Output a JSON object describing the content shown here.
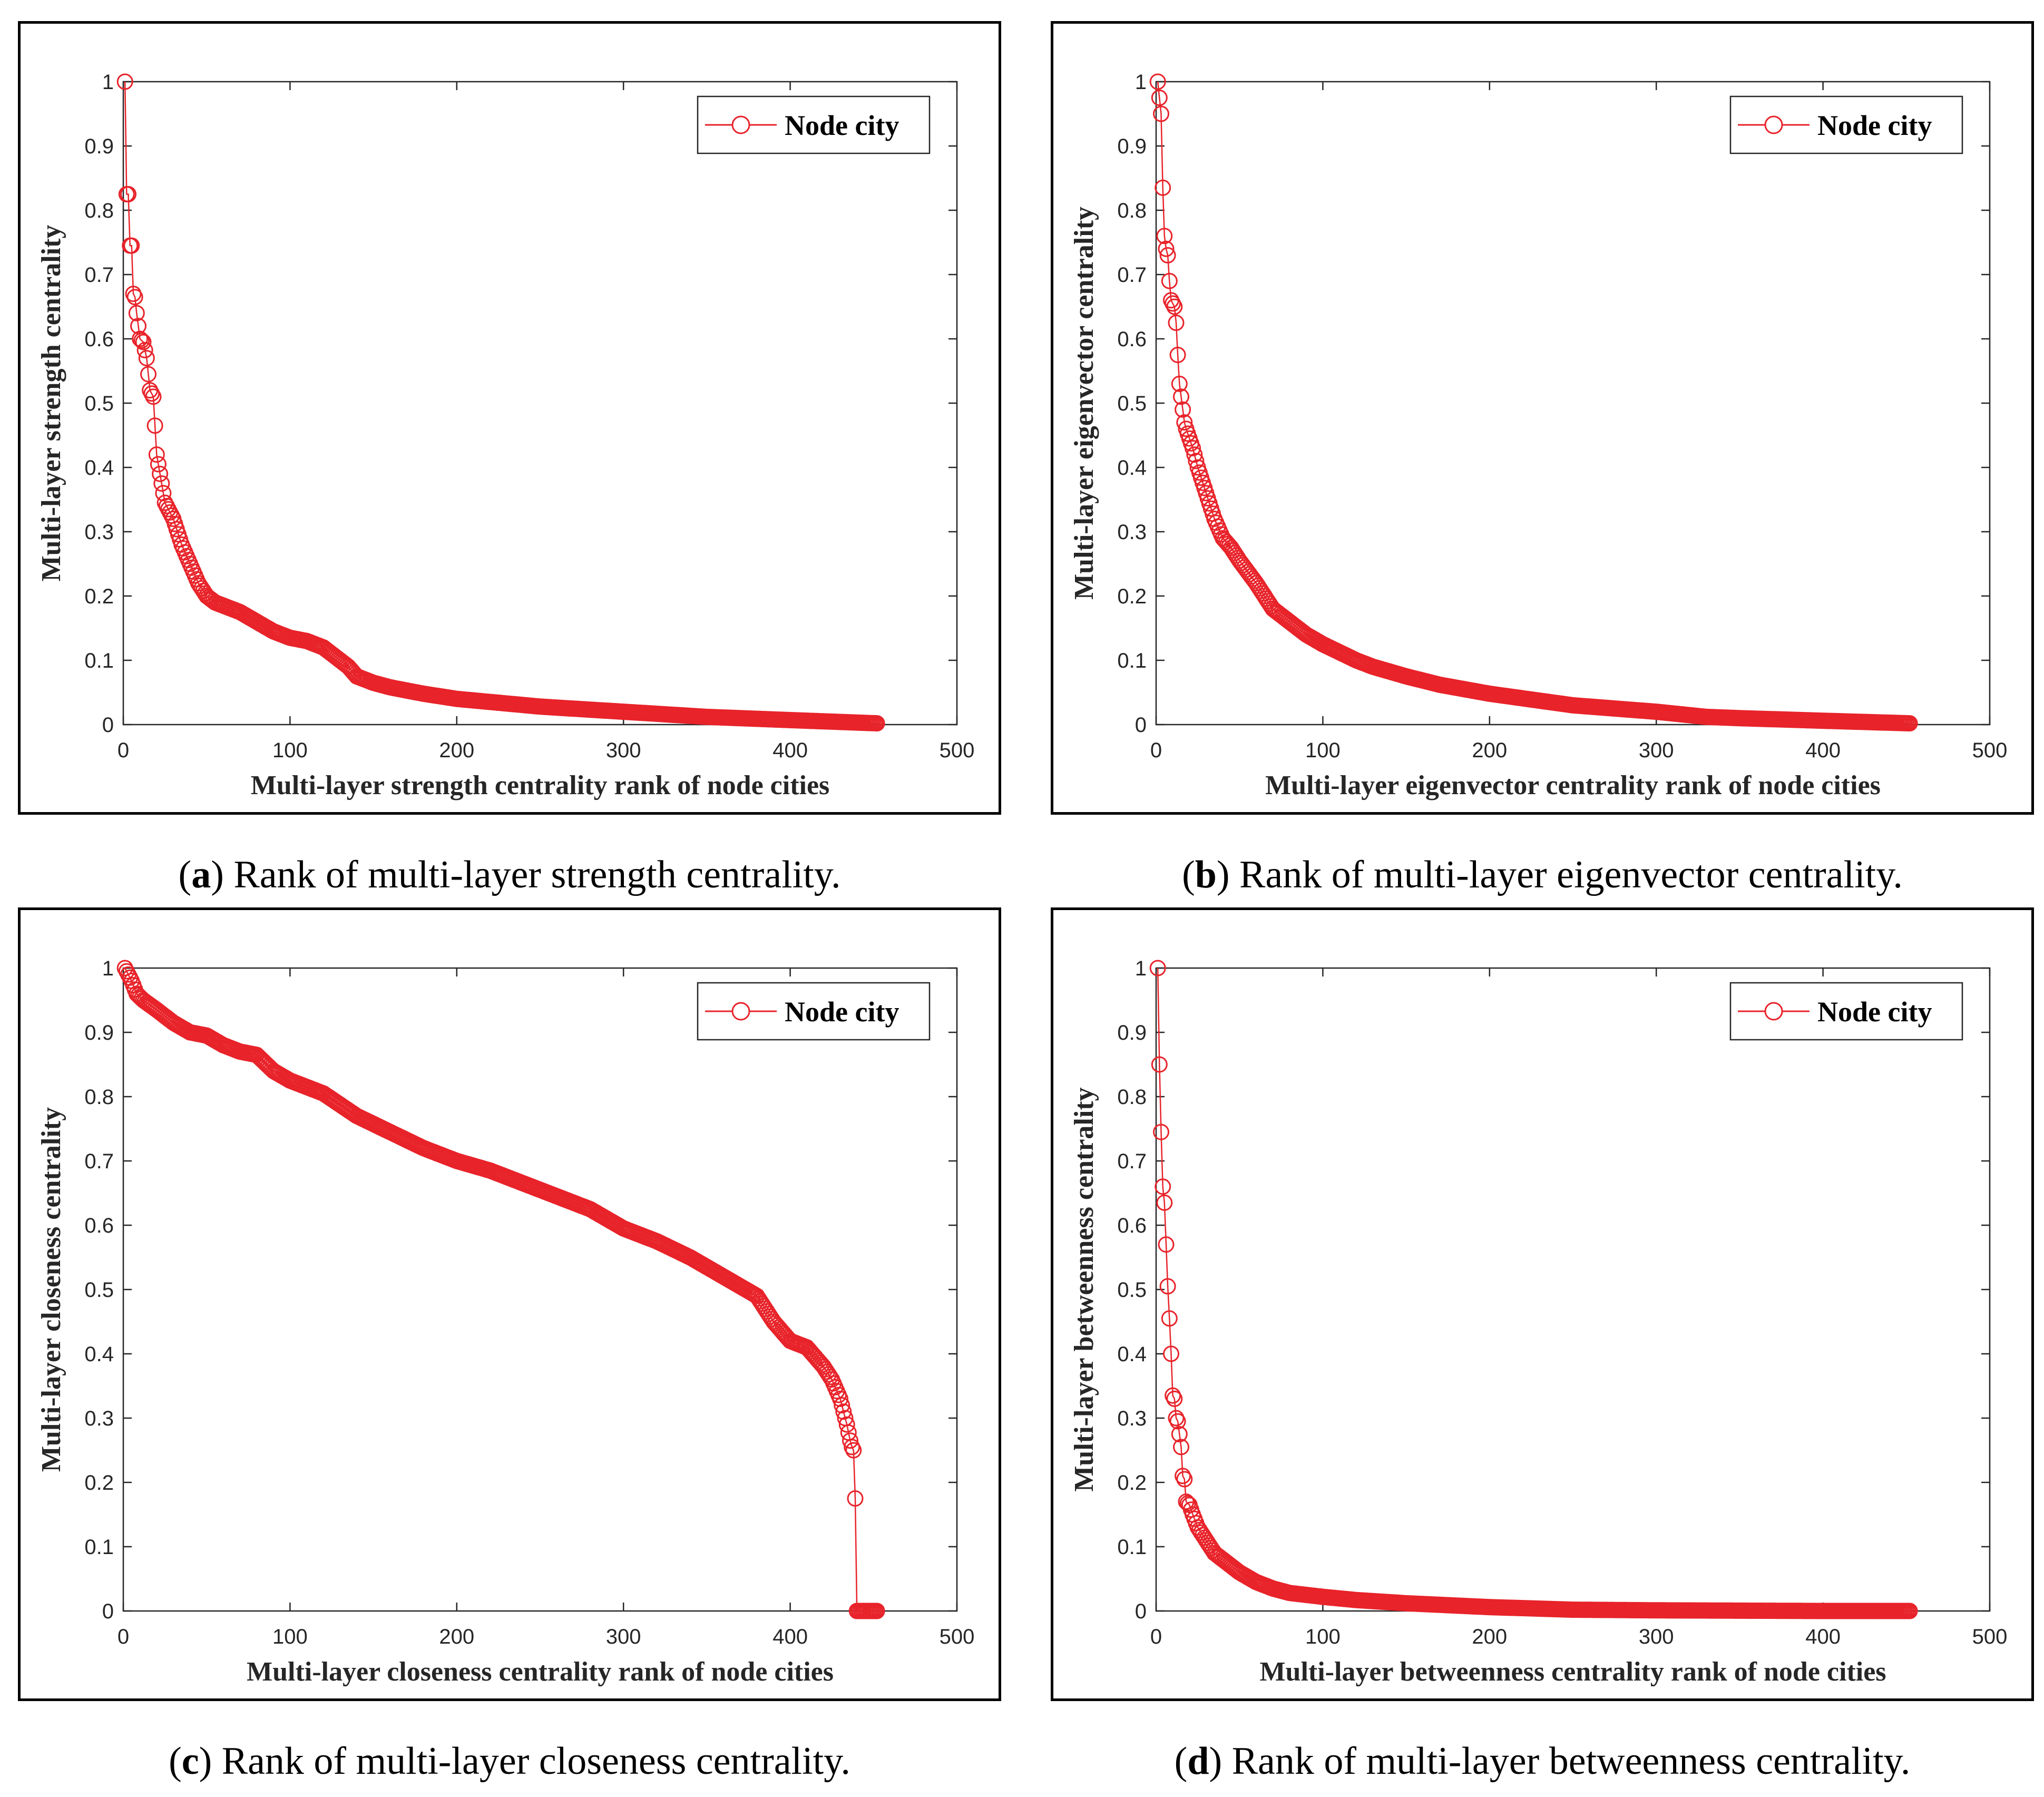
{
  "colors": {
    "series": "#e8232a",
    "axis": "#262626",
    "frame": "#000000"
  },
  "chart_data": [
    {
      "id": "a",
      "type": "line",
      "caption_letter": "a",
      "caption_text": ") Rank of multi-layer strength centrality.",
      "caption_open": "(",
      "xlabel": "Multi-layer strength centrality rank of node cities",
      "ylabel": "Multi-layer strength centrality",
      "xlim": [
        0,
        500
      ],
      "ylim": [
        0,
        1
      ],
      "xticks": [
        "0",
        "100",
        "200",
        "300",
        "400",
        "500"
      ],
      "yticks": [
        "0",
        "0.1",
        "0.2",
        "0.3",
        "0.4",
        "0.5",
        "0.6",
        "0.7",
        "0.8",
        "0.9",
        "1"
      ],
      "legend": "Node city",
      "legend_position": "top-right",
      "n_points": 452,
      "series": [
        {
          "name": "Node city",
          "x": [
            1,
            2,
            3,
            4,
            5,
            6,
            7,
            8,
            9,
            10,
            12,
            14,
            16,
            18,
            20,
            22,
            25,
            30,
            35,
            40,
            45,
            50,
            55,
            60,
            70,
            80,
            90,
            100,
            110,
            120,
            130,
            135,
            140,
            150,
            160,
            180,
            200,
            250,
            300,
            350,
            400,
            452
          ],
          "y": [
            1.0,
            0.825,
            0.825,
            0.745,
            0.745,
            0.67,
            0.665,
            0.64,
            0.62,
            0.6,
            0.595,
            0.57,
            0.52,
            0.51,
            0.42,
            0.39,
            0.345,
            0.32,
            0.28,
            0.25,
            0.22,
            0.2,
            0.19,
            0.185,
            0.175,
            0.16,
            0.145,
            0.135,
            0.13,
            0.12,
            0.1,
            0.09,
            0.075,
            0.065,
            0.058,
            0.048,
            0.04,
            0.028,
            0.02,
            0.012,
            0.007,
            0.002
          ]
        }
      ]
    },
    {
      "id": "b",
      "type": "line",
      "caption_letter": "b",
      "caption_text": ") Rank of multi-layer eigenvector centrality.",
      "caption_open": "(",
      "xlabel": "Multi-layer eigenvector centrality rank of node cities",
      "ylabel": "Multi-layer eigenvector centrality",
      "xlim": [
        0,
        500
      ],
      "ylim": [
        0,
        1
      ],
      "xticks": [
        "0",
        "100",
        "200",
        "300",
        "400",
        "500"
      ],
      "yticks": [
        "0",
        "0.1",
        "0.2",
        "0.3",
        "0.4",
        "0.5",
        "0.6",
        "0.7",
        "0.8",
        "0.9",
        "1"
      ],
      "legend": "Node city",
      "legend_position": "top-right",
      "n_points": 452,
      "series": [
        {
          "name": "Node city",
          "x": [
            1,
            2,
            3,
            4,
            5,
            6,
            7,
            8,
            9,
            10,
            11,
            12,
            13,
            14,
            15,
            16,
            17,
            18,
            20,
            22,
            25,
            30,
            35,
            40,
            45,
            50,
            60,
            70,
            80,
            90,
            100,
            120,
            130,
            150,
            170,
            200,
            250,
            300,
            330,
            350,
            400,
            452
          ],
          "y": [
            1.0,
            0.975,
            0.95,
            0.835,
            0.76,
            0.74,
            0.73,
            0.69,
            0.66,
            0.655,
            0.65,
            0.625,
            0.575,
            0.53,
            0.51,
            0.49,
            0.47,
            0.46,
            0.445,
            0.43,
            0.4,
            0.36,
            0.32,
            0.29,
            0.275,
            0.255,
            0.22,
            0.18,
            0.16,
            0.14,
            0.125,
            0.1,
            0.09,
            0.075,
            0.062,
            0.048,
            0.03,
            0.02,
            0.012,
            0.01,
            0.006,
            0.002
          ]
        }
      ]
    },
    {
      "id": "c",
      "type": "line",
      "caption_letter": "c",
      "caption_text": ") Rank of multi-layer closeness centrality.",
      "caption_open": "(",
      "xlabel": "Multi-layer closeness centrality rank of node cities",
      "ylabel": "Multi-layer closeness centrality",
      "xlim": [
        0,
        500
      ],
      "ylim": [
        0,
        1
      ],
      "xticks": [
        "0",
        "100",
        "200",
        "300",
        "400",
        "500"
      ],
      "yticks": [
        "0",
        "0.1",
        "0.2",
        "0.3",
        "0.4",
        "0.5",
        "0.6",
        "0.7",
        "0.8",
        "0.9",
        "1"
      ],
      "legend": "Node city",
      "legend_position": "top-right",
      "n_points": 452,
      "series": [
        {
          "name": "Node city",
          "x": [
            1,
            3,
            5,
            8,
            12,
            20,
            30,
            40,
            50,
            60,
            70,
            80,
            90,
            100,
            120,
            140,
            160,
            180,
            200,
            220,
            240,
            260,
            280,
            300,
            320,
            340,
            360,
            380,
            390,
            400,
            410,
            420,
            425,
            430,
            432,
            434,
            436,
            437,
            438,
            439,
            440,
            445,
            452
          ],
          "y": [
            1.0,
            0.99,
            0.98,
            0.96,
            0.95,
            0.935,
            0.915,
            0.9,
            0.895,
            0.88,
            0.87,
            0.865,
            0.84,
            0.825,
            0.805,
            0.77,
            0.745,
            0.72,
            0.7,
            0.685,
            0.665,
            0.645,
            0.625,
            0.595,
            0.575,
            0.55,
            0.52,
            0.49,
            0.45,
            0.42,
            0.41,
            0.38,
            0.36,
            0.33,
            0.31,
            0.29,
            0.265,
            0.255,
            0.25,
            0.175,
            0.0,
            0.0,
            0.0
          ]
        }
      ]
    },
    {
      "id": "d",
      "type": "line",
      "caption_letter": "d",
      "caption_text": ") Rank of multi-layer betweenness centrality.",
      "caption_open": "(",
      "xlabel": "Multi-layer betweenness centrality rank of node cities",
      "ylabel": "Multi-layer betweenness centrality",
      "xlim": [
        0,
        500
      ],
      "ylim": [
        0,
        1
      ],
      "xticks": [
        "0",
        "100",
        "200",
        "300",
        "400",
        "500"
      ],
      "yticks": [
        "0",
        "0.1",
        "0.2",
        "0.3",
        "0.4",
        "0.5",
        "0.6",
        "0.7",
        "0.8",
        "0.9",
        "1"
      ],
      "legend": "Node city",
      "legend_position": "top-right",
      "n_points": 452,
      "series": [
        {
          "name": "Node city",
          "x": [
            1,
            2,
            3,
            4,
            5,
            6,
            7,
            8,
            9,
            10,
            11,
            12,
            13,
            14,
            15,
            16,
            17,
            18,
            20,
            22,
            25,
            30,
            35,
            40,
            50,
            60,
            70,
            80,
            100,
            120,
            150,
            200,
            250,
            300,
            400,
            452
          ],
          "y": [
            1.0,
            0.85,
            0.745,
            0.66,
            0.635,
            0.57,
            0.505,
            0.455,
            0.4,
            0.335,
            0.33,
            0.3,
            0.295,
            0.275,
            0.255,
            0.21,
            0.205,
            0.17,
            0.165,
            0.15,
            0.13,
            0.11,
            0.09,
            0.08,
            0.06,
            0.045,
            0.035,
            0.028,
            0.022,
            0.017,
            0.012,
            0.006,
            0.002,
            0.001,
            0.0,
            0.0
          ]
        }
      ]
    }
  ]
}
